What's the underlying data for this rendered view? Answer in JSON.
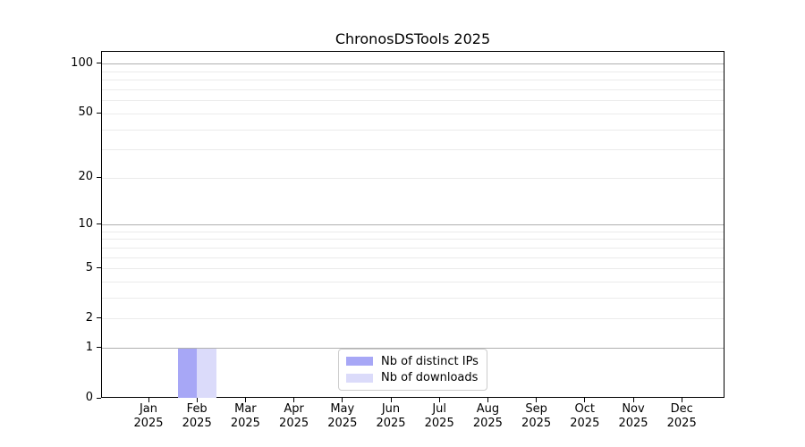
{
  "chart_data": {
    "type": "bar",
    "title": "ChronosDSTools 2025",
    "categories": [
      {
        "month": "Jan",
        "year": "2025"
      },
      {
        "month": "Feb",
        "year": "2025"
      },
      {
        "month": "Mar",
        "year": "2025"
      },
      {
        "month": "Apr",
        "year": "2025"
      },
      {
        "month": "May",
        "year": "2025"
      },
      {
        "month": "Jun",
        "year": "2025"
      },
      {
        "month": "Jul",
        "year": "2025"
      },
      {
        "month": "Aug",
        "year": "2025"
      },
      {
        "month": "Sep",
        "year": "2025"
      },
      {
        "month": "Oct",
        "year": "2025"
      },
      {
        "month": "Nov",
        "year": "2025"
      },
      {
        "month": "Dec",
        "year": "2025"
      }
    ],
    "series": [
      {
        "name": "Nb of distinct IPs",
        "color": "#a7a7f6",
        "values": [
          0,
          1,
          0,
          0,
          0,
          0,
          0,
          0,
          0,
          0,
          0,
          0
        ]
      },
      {
        "name": "Nb of downloads",
        "color": "#dbdbfa",
        "values": [
          0,
          1,
          0,
          0,
          0,
          0,
          0,
          0,
          0,
          0,
          0,
          0
        ]
      }
    ],
    "yscale": "log1p",
    "ylim": [
      0,
      119
    ],
    "y_tick_values": [
      0,
      1,
      2,
      5,
      10,
      20,
      50,
      100
    ],
    "major_grid_values": [
      1,
      10,
      100
    ],
    "minor_grid_values": [
      2,
      3,
      4,
      5,
      6,
      7,
      8,
      9,
      20,
      30,
      40,
      50,
      60,
      70,
      80,
      90
    ],
    "grid": {
      "on": true,
      "major_color": "#b0b0b0",
      "minor_color": "#ebebeb"
    },
    "axis_color": "#000000",
    "legend": {
      "position": "lower center"
    }
  }
}
